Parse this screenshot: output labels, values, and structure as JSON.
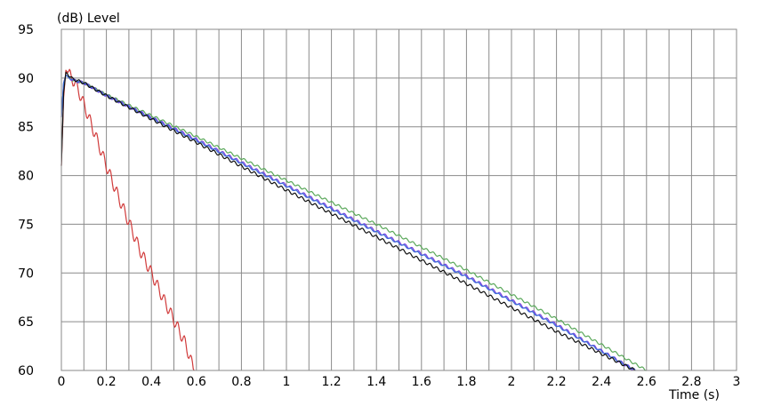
{
  "chart_data": {
    "type": "line",
    "title": "",
    "ylabel": "(dB)  Level",
    "xlabel": "Time  (s)",
    "xlim": [
      0,
      3
    ],
    "ylim": [
      60,
      95
    ],
    "grid": true,
    "x_ticks": [
      {
        "value": 0,
        "label": "0"
      },
      {
        "value": 0.2,
        "label": "0.2"
      },
      {
        "value": 0.4,
        "label": "0.4"
      },
      {
        "value": 0.6,
        "label": "0.6"
      },
      {
        "value": 0.8,
        "label": "0.8"
      },
      {
        "value": 1.0,
        "label": "1"
      },
      {
        "value": 1.2,
        "label": "1.2"
      },
      {
        "value": 1.4,
        "label": "1.4"
      },
      {
        "value": 1.6,
        "label": "1.6"
      },
      {
        "value": 1.8,
        "label": "1.8"
      },
      {
        "value": 2.0,
        "label": "2"
      },
      {
        "value": 2.2,
        "label": "2.2"
      },
      {
        "value": 2.4,
        "label": "2.4"
      },
      {
        "value": 2.6,
        "label": "2.6"
      },
      {
        "value": 2.8,
        "label": "2.8"
      },
      {
        "value": 3.0,
        "label": "3"
      }
    ],
    "x_grid_step": 0.1,
    "y_ticks": [
      {
        "value": 60,
        "label": "60"
      },
      {
        "value": 65,
        "label": "65"
      },
      {
        "value": 70,
        "label": "70"
      },
      {
        "value": 75,
        "label": "75"
      },
      {
        "value": 80,
        "label": "80"
      },
      {
        "value": 85,
        "label": "85"
      },
      {
        "value": 90,
        "label": "90"
      },
      {
        "value": 95,
        "label": "95"
      }
    ],
    "series": [
      {
        "color": "#d13b3b",
        "points": [
          [
            0,
            81
          ],
          [
            0.01,
            88
          ],
          [
            0.02,
            90.8
          ],
          [
            0.04,
            90.2
          ],
          [
            0.06,
            89.5
          ],
          [
            0.08,
            88.5
          ],
          [
            0.1,
            87.3
          ],
          [
            0.15,
            84.2
          ],
          [
            0.2,
            81
          ],
          [
            0.25,
            78
          ],
          [
            0.3,
            75.2
          ],
          [
            0.35,
            72.3
          ],
          [
            0.4,
            70
          ],
          [
            0.45,
            67.5
          ],
          [
            0.5,
            65.2
          ],
          [
            0.55,
            62.8
          ],
          [
            0.59,
            60
          ]
        ],
        "ripple": 0.6
      },
      {
        "color": "#5aa85a",
        "points": [
          [
            0,
            86
          ],
          [
            0.01,
            89.5
          ],
          [
            0.02,
            90.3
          ],
          [
            0.05,
            89.8
          ],
          [
            0.1,
            89.5
          ],
          [
            0.2,
            88.3
          ],
          [
            0.6,
            84
          ],
          [
            1.0,
            79.5
          ],
          [
            1.4,
            75
          ],
          [
            1.8,
            70.3
          ],
          [
            2.2,
            65.3
          ],
          [
            2.6,
            60
          ]
        ],
        "ripple": 0.12
      },
      {
        "color": "#7b3fe0",
        "points": [
          [
            0,
            86
          ],
          [
            0.01,
            89.5
          ],
          [
            0.02,
            90.3
          ],
          [
            0.05,
            89.8
          ],
          [
            0.1,
            89.5
          ],
          [
            0.2,
            88.2
          ],
          [
            0.6,
            83.7
          ],
          [
            1.0,
            79
          ],
          [
            1.4,
            74.3
          ],
          [
            1.8,
            69.7
          ],
          [
            2.2,
            64.7
          ],
          [
            2.55,
            60
          ]
        ],
        "ripple": 0.14
      },
      {
        "color": "#3a6fd8",
        "points": [
          [
            0,
            86
          ],
          [
            0.01,
            89.5
          ],
          [
            0.02,
            90.3
          ],
          [
            0.05,
            89.8
          ],
          [
            0.1,
            89.5
          ],
          [
            0.2,
            88.2
          ],
          [
            0.6,
            83.6
          ],
          [
            1.0,
            78.9
          ],
          [
            1.4,
            74.2
          ],
          [
            1.8,
            69.6
          ],
          [
            2.2,
            64.6
          ],
          [
            2.55,
            60
          ]
        ],
        "ripple": 0.1
      },
      {
        "color": "#111111",
        "points": [
          [
            0,
            81
          ],
          [
            0.01,
            88.5
          ],
          [
            0.02,
            90.6
          ],
          [
            0.05,
            89.9
          ],
          [
            0.1,
            89.5
          ],
          [
            0.2,
            88.2
          ],
          [
            0.6,
            83.4
          ],
          [
            1.0,
            78.5
          ],
          [
            1.4,
            73.7
          ],
          [
            1.8,
            68.9
          ],
          [
            2.2,
            64
          ],
          [
            2.55,
            60
          ]
        ],
        "ripple": 0.15
      }
    ]
  }
}
